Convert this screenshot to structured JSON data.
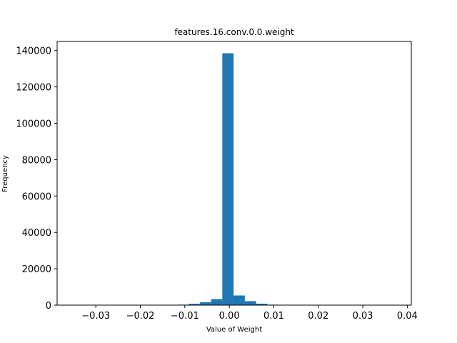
{
  "chart_data": {
    "type": "bar",
    "title": "features.16.conv.0.0.weight",
    "xlabel": "Value of Weight",
    "ylabel": "Frequency",
    "xlim": [
      -0.0387,
      0.0409
    ],
    "ylim": [
      0,
      145000
    ],
    "x_ticks": [
      -0.03,
      -0.02,
      -0.01,
      0.0,
      0.01,
      0.02,
      0.03,
      0.04
    ],
    "x_tick_labels": [
      "−0.03",
      "−0.02",
      "−0.01",
      "0.00",
      "0.01",
      "0.02",
      "0.03",
      "0.04"
    ],
    "y_ticks": [
      0,
      20000,
      40000,
      60000,
      80000,
      100000,
      120000,
      140000
    ],
    "y_tick_labels": [
      "0",
      "20000",
      "40000",
      "60000",
      "80000",
      "100000",
      "120000",
      "140000"
    ],
    "grid": false,
    "color": "#1f77b4",
    "bin_width": 0.00253,
    "bins": [
      {
        "x0": -0.01169,
        "value": 250
      },
      {
        "x0": -0.00916,
        "value": 700
      },
      {
        "x0": -0.00663,
        "value": 1600
      },
      {
        "x0": -0.0041,
        "value": 3300
      },
      {
        "x0": -0.00157,
        "value": 138500
      },
      {
        "x0": 0.00096,
        "value": 5300
      },
      {
        "x0": 0.00349,
        "value": 2200
      },
      {
        "x0": 0.00602,
        "value": 800
      },
      {
        "x0": 0.00855,
        "value": 250
      }
    ]
  }
}
